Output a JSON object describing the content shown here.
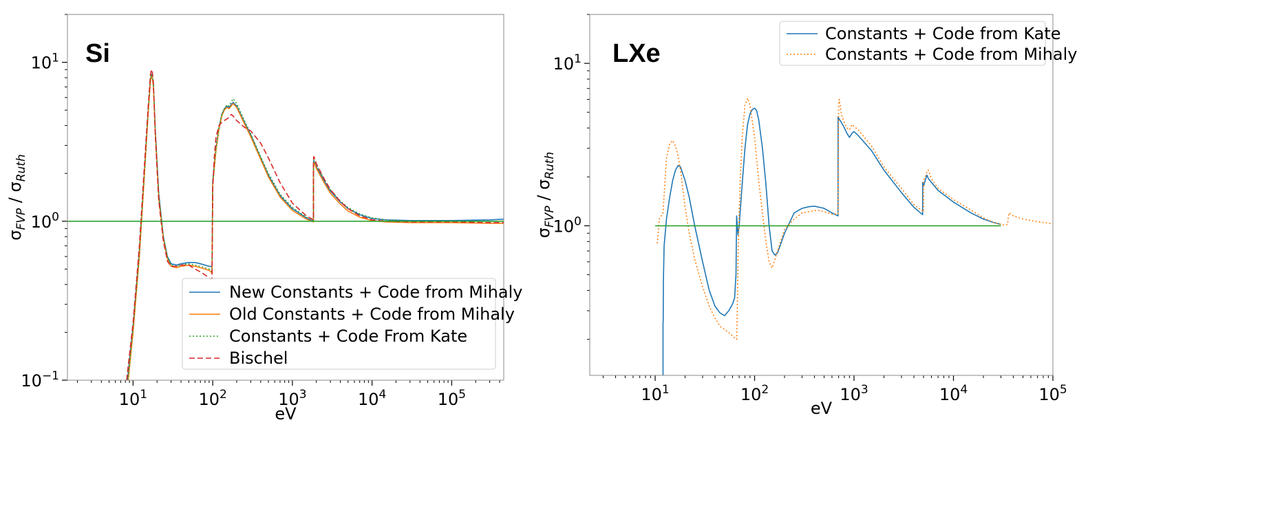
{
  "chart_data": [
    {
      "type": "line",
      "panel_label": "Si",
      "xlabel": "eV",
      "ylabel": "σFVP / σRuth",
      "xscale": "log",
      "yscale": "log",
      "xlim": [
        1.5,
        450000
      ],
      "ylim": [
        0.1,
        20
      ],
      "x_ticks": [
        {
          "value": 10,
          "base": "10",
          "exp": "1"
        },
        {
          "value": 100,
          "base": "10",
          "exp": "2"
        },
        {
          "value": 1000,
          "base": "10",
          "exp": "3"
        },
        {
          "value": 10000,
          "base": "10",
          "exp": "4"
        },
        {
          "value": 100000,
          "base": "10",
          "exp": "5"
        }
      ],
      "y_ticks": [
        {
          "value": 0.1,
          "base": "10",
          "exp": "−1"
        },
        {
          "value": 1,
          "base": "10",
          "exp": "0"
        },
        {
          "value": 10,
          "base": "10",
          "exp": "1"
        }
      ],
      "legend_position": "bottom-right",
      "series": [
        {
          "name": "New Constants + Code from Mihaly",
          "color": "#1f77b4",
          "style": "solid",
          "x": [
            8.5,
            10,
            12,
            14,
            15.5,
            16.5,
            17,
            17.5,
            18,
            19,
            21,
            24,
            27,
            30,
            35,
            40,
            50,
            60,
            70,
            80,
            90,
            95,
            98,
            100,
            105,
            110,
            120,
            130,
            140,
            150,
            160,
            170,
            180,
            200,
            250,
            300,
            400,
            500,
            700,
            1000,
            1500,
            1839,
            1840,
            1850,
            1900,
            2000,
            2500,
            3000,
            4000,
            5000,
            7000,
            10000,
            15000,
            30000,
            100000,
            300000,
            450000
          ],
          "y": [
            0.1,
            0.22,
            0.65,
            2.2,
            5.0,
            7.8,
            8.4,
            8.0,
            7.2,
            3.8,
            1.5,
            0.8,
            0.6,
            0.54,
            0.53,
            0.54,
            0.55,
            0.55,
            0.54,
            0.53,
            0.52,
            0.52,
            0.51,
            1.8,
            2.3,
            2.9,
            3.9,
            4.7,
            5.1,
            5.3,
            5.2,
            5.4,
            5.6,
            5.3,
            4.2,
            3.5,
            2.5,
            1.95,
            1.45,
            1.2,
            1.05,
            1.0,
            2.2,
            2.4,
            2.35,
            2.2,
            1.8,
            1.55,
            1.32,
            1.2,
            1.1,
            1.04,
            1.02,
            1.01,
            1.01,
            1.02,
            1.03
          ]
        },
        {
          "name": "Old Constants + Code from Mihaly",
          "color": "#ff7f0e",
          "style": "solid",
          "x": [
            8.7,
            10,
            12,
            14,
            15.5,
            16.5,
            17,
            17.5,
            18,
            19,
            21,
            24,
            27,
            30,
            35,
            40,
            50,
            60,
            70,
            80,
            90,
            95,
            98,
            100,
            105,
            110,
            120,
            130,
            140,
            150,
            160,
            170,
            180,
            200,
            250,
            300,
            400,
            500,
            700,
            1000,
            1500,
            1839,
            1840,
            1850,
            1900,
            2000,
            2500,
            3000,
            4000,
            5000,
            7000,
            10000,
            15000,
            30000,
            100000,
            300000,
            450000
          ],
          "y": [
            0.1,
            0.2,
            0.6,
            2.1,
            4.8,
            7.6,
            8.2,
            7.9,
            7.0,
            3.6,
            1.4,
            0.78,
            0.58,
            0.52,
            0.51,
            0.52,
            0.53,
            0.52,
            0.51,
            0.5,
            0.49,
            0.48,
            0.47,
            1.7,
            2.2,
            2.8,
            3.8,
            4.6,
            5.0,
            5.2,
            5.1,
            5.3,
            5.5,
            5.2,
            4.1,
            3.4,
            2.45,
            1.9,
            1.42,
            1.17,
            1.03,
            0.99,
            2.15,
            2.35,
            2.3,
            2.15,
            1.75,
            1.5,
            1.28,
            1.16,
            1.06,
            1.01,
            0.99,
            0.98,
            0.98,
            0.97,
            0.97
          ]
        },
        {
          "name": "Constants + Code From Kate",
          "color": "#2ca02c",
          "style": "dotted",
          "x": [
            8.6,
            10,
            12,
            14,
            15.5,
            16.5,
            17,
            17.5,
            18,
            19,
            21,
            24,
            27,
            30,
            35,
            40,
            50,
            60,
            70,
            80,
            90,
            95,
            98,
            100,
            105,
            110,
            120,
            130,
            140,
            150,
            160,
            170,
            180,
            200,
            250,
            300,
            400,
            500,
            700,
            1000,
            1500,
            1839,
            1840,
            1850,
            1900,
            2000,
            2500,
            3000,
            4000,
            5000,
            7000,
            10000,
            15000,
            30000,
            100000,
            300000,
            450000
          ],
          "y": [
            0.1,
            0.21,
            0.62,
            2.15,
            4.9,
            7.7,
            8.3,
            8.0,
            7.1,
            3.7,
            1.45,
            0.79,
            0.59,
            0.53,
            0.52,
            0.53,
            0.54,
            0.53,
            0.52,
            0.51,
            0.5,
            0.49,
            0.48,
            1.75,
            2.25,
            2.85,
            3.85,
            4.7,
            5.1,
            5.4,
            5.3,
            5.6,
            5.9,
            5.5,
            4.3,
            3.55,
            2.55,
            2.0,
            1.48,
            1.22,
            1.06,
            1.01,
            2.25,
            2.45,
            2.4,
            2.25,
            1.85,
            1.58,
            1.34,
            1.22,
            1.11,
            1.05,
            1.02,
            1.0,
            1.0,
            1.0,
            1.0
          ]
        },
        {
          "name": "Bischel",
          "color": "#d62728",
          "style": "dashed",
          "x": [
            8.3,
            10,
            12,
            14,
            15.5,
            16.5,
            17,
            17.5,
            18,
            19,
            21,
            24,
            27,
            30,
            35,
            40,
            50,
            60,
            70,
            80,
            90,
            95,
            98,
            100,
            105,
            110,
            120,
            130,
            140,
            150,
            160,
            170,
            180,
            200,
            250,
            300,
            400,
            500,
            700,
            1000,
            1500,
            1839,
            1840,
            1850,
            1900,
            2000,
            2500,
            3000,
            4000,
            5000,
            7000,
            10000,
            15000,
            30000,
            100000,
            300000,
            450000
          ],
          "y": [
            0.1,
            0.23,
            0.7,
            2.4,
            5.3,
            8.3,
            9.0,
            8.6,
            7.4,
            3.5,
            1.35,
            0.75,
            0.56,
            0.52,
            0.52,
            0.53,
            0.53,
            0.5,
            0.48,
            0.46,
            0.44,
            0.43,
            0.43,
            1.6,
            2.6,
            3.4,
            4.0,
            4.2,
            4.3,
            4.4,
            4.5,
            4.7,
            4.6,
            4.3,
            3.9,
            3.7,
            3.1,
            2.5,
            1.75,
            1.3,
            1.08,
            1.02,
            2.3,
            2.55,
            2.5,
            2.3,
            1.85,
            1.58,
            1.33,
            1.2,
            1.08,
            1.02,
            1.0,
            0.99,
            0.99,
            0.98,
            0.98
          ]
        },
        {
          "name": "",
          "color": "#2ca02c",
          "style": "solid",
          "x": [
            1.5,
            450000
          ],
          "y": [
            1.0,
            1.0
          ]
        }
      ]
    },
    {
      "type": "line",
      "panel_label": "LXe",
      "xlabel": "eV",
      "ylabel": "σFVP / σRuth",
      "xscale": "log",
      "yscale": "log",
      "xlim": [
        2.2,
        100000
      ],
      "ylim": [
        0.12,
        20
      ],
      "x_ticks": [
        {
          "value": 10,
          "base": "10",
          "exp": "1"
        },
        {
          "value": 100,
          "base": "10",
          "exp": "2"
        },
        {
          "value": 1000,
          "base": "10",
          "exp": "3"
        },
        {
          "value": 10000,
          "base": "10",
          "exp": "4"
        },
        {
          "value": 100000,
          "base": "10",
          "exp": "5"
        }
      ],
      "y_ticks": [
        {
          "value": 1,
          "base": "10",
          "exp": "0"
        },
        {
          "value": 10,
          "base": "10",
          "exp": "1"
        }
      ],
      "legend_position": "top-right",
      "series": [
        {
          "name": "Constants + Code from Kate",
          "color": "#1f77b4",
          "style": "solid",
          "x": [
            12.0,
            12.0,
            12.05,
            12.1,
            12.3,
            13,
            14,
            15,
            16,
            17,
            18,
            20,
            22,
            25,
            30,
            35,
            40,
            45,
            50,
            55,
            60,
            63,
            65,
            66,
            67,
            68,
            70,
            75,
            80,
            85,
            90,
            95,
            100,
            105,
            110,
            120,
            130,
            140,
            150,
            160,
            170,
            180,
            200,
            250,
            300,
            350,
            400,
            450,
            500,
            600,
            690,
            691,
            700,
            750,
            800,
            850,
            900,
            950,
            1000,
            1100,
            1500,
            2000,
            3000,
            4000,
            4900,
            4901,
            5000,
            5200,
            5400,
            5500,
            5600,
            6000,
            7000,
            10000,
            15000,
            20000,
            25000,
            30000
          ],
          "y": [
            0.12,
            0.25,
            0.26,
            0.45,
            0.75,
            1.1,
            1.5,
            1.9,
            2.2,
            2.35,
            2.3,
            1.9,
            1.5,
            1.0,
            0.6,
            0.4,
            0.32,
            0.29,
            0.28,
            0.3,
            0.33,
            0.36,
            0.5,
            1.15,
            1.0,
            0.88,
            1.0,
            1.8,
            3.0,
            4.2,
            4.9,
            5.2,
            5.3,
            5.1,
            4.5,
            3.0,
            1.8,
            1.0,
            0.7,
            0.66,
            0.68,
            0.75,
            0.9,
            1.2,
            1.28,
            1.31,
            1.32,
            1.3,
            1.28,
            1.2,
            1.15,
            4.7,
            4.6,
            4.3,
            4.0,
            3.7,
            3.5,
            3.7,
            3.8,
            3.6,
            2.9,
            2.2,
            1.6,
            1.3,
            1.17,
            1.85,
            1.75,
            1.9,
            2.05,
            2.0,
            1.95,
            1.85,
            1.65,
            1.4,
            1.2,
            1.1,
            1.05,
            1.02
          ]
        },
        {
          "name": "Constants + Code from Mihaly",
          "color": "#ff7f0e",
          "style": "dotted",
          "x": [
            10.5,
            10.8,
            11.0,
            11.5,
            12.0,
            12.5,
            13,
            14,
            15,
            16,
            17,
            18,
            20,
            22,
            25,
            30,
            35,
            40,
            45,
            50,
            55,
            60,
            65,
            66,
            67,
            68,
            70,
            72,
            75,
            80,
            85,
            90,
            100,
            110,
            120,
            130,
            140,
            150,
            160,
            170,
            180,
            200,
            250,
            300,
            350,
            400,
            450,
            500,
            600,
            690,
            700,
            710,
            750,
            800,
            850,
            900,
            950,
            1000,
            1100,
            1500,
            2000,
            3000,
            4000,
            5000,
            5001,
            5200,
            5500,
            5600,
            6000,
            7000,
            10000,
            15000,
            20000,
            25000,
            30000,
            32000,
            35000,
            36000,
            40000,
            50000,
            70000,
            100000
          ],
          "y": [
            0.78,
            0.95,
            1.1,
            1.15,
            1.2,
            1.8,
            2.6,
            3.2,
            3.35,
            3.1,
            2.7,
            2.2,
            1.3,
            0.9,
            0.62,
            0.42,
            0.32,
            0.27,
            0.24,
            0.23,
            0.22,
            0.21,
            0.2,
            0.2,
            0.3,
            0.6,
            1.2,
            2.0,
            3.5,
            5.5,
            6.1,
            5.5,
            3.5,
            1.9,
            1.2,
            0.8,
            0.6,
            0.55,
            0.62,
            0.7,
            0.78,
            0.95,
            1.1,
            1.2,
            1.22,
            1.24,
            1.24,
            1.22,
            1.18,
            1.18,
            5.5,
            6.0,
            4.8,
            4.3,
            4.0,
            3.9,
            4.2,
            4.1,
            3.9,
            3.1,
            2.3,
            1.7,
            1.35,
            1.22,
            1.9,
            2.0,
            2.2,
            2.2,
            1.95,
            1.7,
            1.45,
            1.25,
            1.12,
            1.05,
            1.02,
            1.01,
            1.02,
            1.2,
            1.15,
            1.1,
            1.06,
            1.03
          ]
        },
        {
          "name": "",
          "color": "#2ca02c",
          "style": "solid",
          "x": [
            10,
            30000
          ],
          "y": [
            1.0,
            1.0
          ]
        }
      ]
    }
  ]
}
